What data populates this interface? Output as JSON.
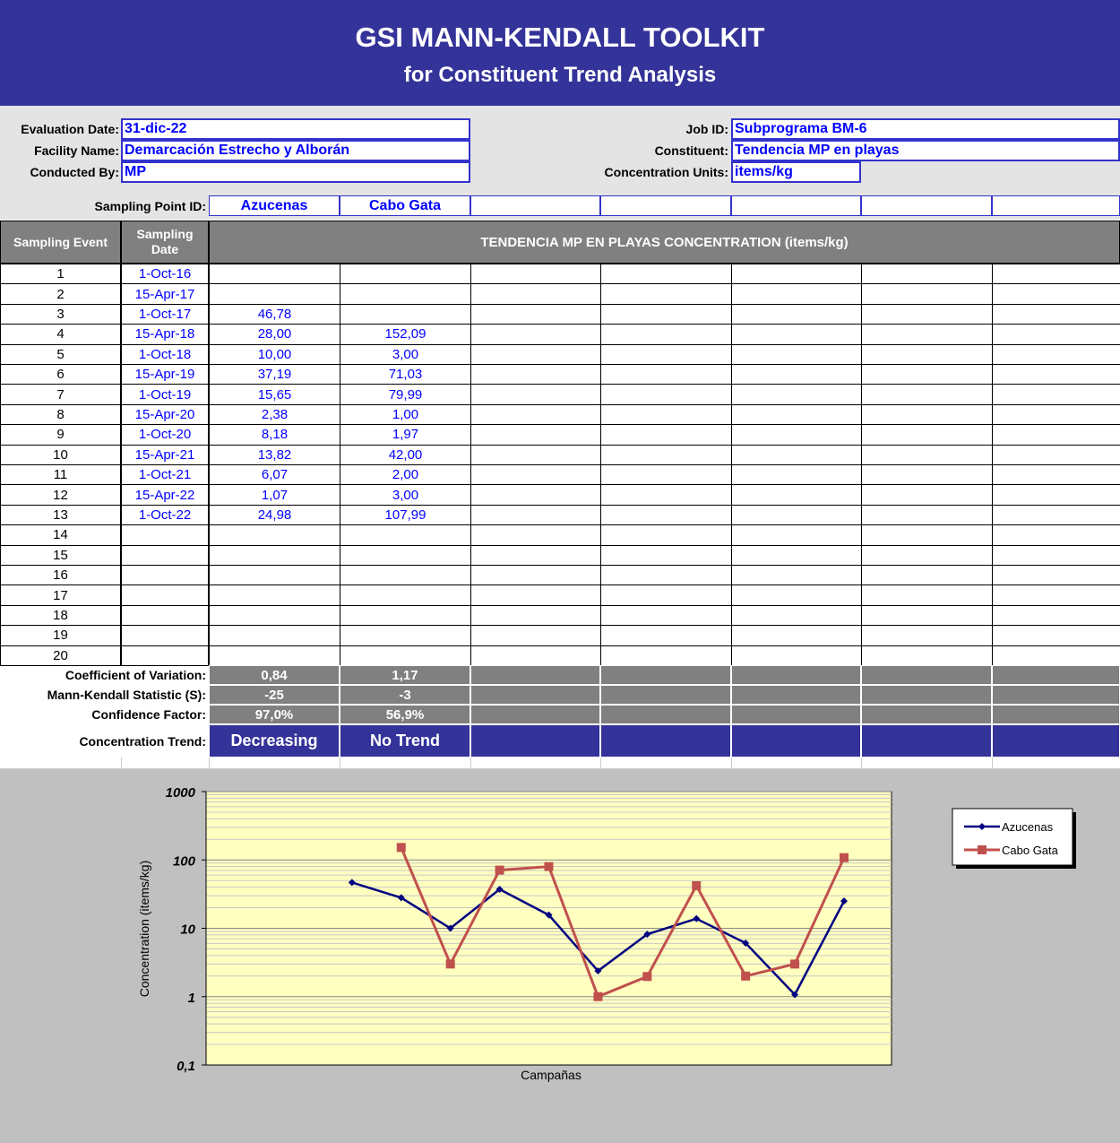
{
  "header": {
    "title": "GSI MANN-KENDALL TOOLKIT",
    "subtitle": "for Constituent Trend Analysis"
  },
  "info": {
    "left": [
      {
        "label": "Evaluation Date:",
        "value": "31-dic-22"
      },
      {
        "label": "Facility Name:",
        "value": "Demarcación Estrecho y Alborán"
      },
      {
        "label": "Conducted By:",
        "value": "MP"
      }
    ],
    "right": [
      {
        "label": "Job ID:",
        "value": "Subprograma BM-6"
      },
      {
        "label": "Constituent:",
        "value": "Tendencia MP en playas"
      },
      {
        "label": "Concentration Units:",
        "value": "items/kg"
      }
    ]
  },
  "sampling_point_label": "Sampling Point ID:",
  "table": {
    "headers": [
      "Sampling Event",
      "Sampling Date",
      "TENDENCIA MP EN PLAYAS CONCENTRATION (items/kg)"
    ],
    "events": [
      1,
      2,
      3,
      4,
      5,
      6,
      7,
      8,
      9,
      10,
      11,
      12,
      13,
      14,
      15,
      16,
      17,
      18,
      19,
      20
    ],
    "dates": [
      "1-Oct-16",
      "15-Apr-17",
      "1-Oct-17",
      "15-Apr-18",
      "1-Oct-18",
      "15-Apr-19",
      "1-Oct-19",
      "15-Apr-20",
      "1-Oct-20",
      "15-Apr-21",
      "1-Oct-21",
      "15-Apr-22",
      "1-Oct-22"
    ]
  },
  "stats": [
    {
      "label": "Coefficient of Variation:",
      "values": [
        "0,84",
        "1,17"
      ]
    },
    {
      "label": "Mann-Kendall Statistic (S):",
      "values": [
        "-25",
        "-3"
      ]
    },
    {
      "label": "Confidence Factor:",
      "values": [
        "97,0%",
        "56,9%"
      ]
    }
  ],
  "trend": {
    "label": "Concentration Trend:",
    "values": [
      "Decreasing",
      "No Trend"
    ]
  },
  "chart_data": {
    "type": "line",
    "x_label": "Campañas",
    "y_label": "Concentration (items/kg)",
    "log_y": true,
    "grid": true,
    "legend": "right",
    "ylim": [
      0.1,
      1000
    ],
    "yticks": [
      {
        "value": 0.1,
        "label": "0,1"
      },
      1,
      10,
      100,
      1000
    ],
    "series": [
      {
        "name": "Azucenas",
        "color": "#000080",
        "marker": "diamond",
        "values": [
          null,
          null,
          46.78,
          28.0,
          10.0,
          37.19,
          15.65,
          2.38,
          8.18,
          13.82,
          6.07,
          1.07,
          24.98
        ],
        "value_labels": [
          null,
          null,
          "46,78",
          "28,00",
          "10,00",
          "37,19",
          "15,65",
          "2,38",
          "8,18",
          "13,82",
          "6,07",
          "1,07",
          "24,98"
        ]
      },
      {
        "name": "Cabo Gata",
        "color": "#c0504d",
        "marker": "square",
        "values": [
          null,
          null,
          null,
          152.09,
          3.0,
          71.03,
          79.99,
          1.0,
          1.97,
          42.0,
          2.0,
          3.0,
          107.99
        ],
        "value_labels": [
          null,
          null,
          null,
          "152,09",
          "3,00",
          "71,03",
          "79,99",
          "1,00",
          "1,97",
          "42,00",
          "2,00",
          "3,00",
          "107,99"
        ]
      }
    ]
  }
}
